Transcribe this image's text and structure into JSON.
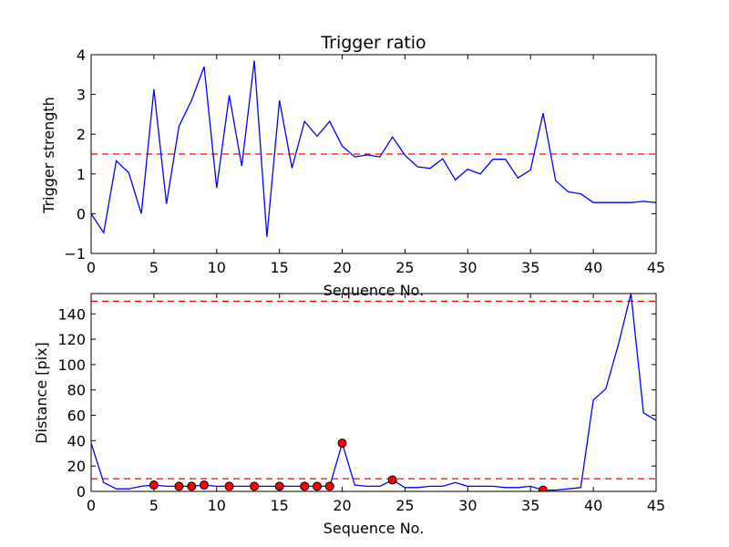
{
  "chart_data": [
    {
      "type": "line",
      "title": "Trigger ratio",
      "xlabel": "Sequence No.",
      "ylabel": "Trigger strength",
      "xlim": [
        0,
        45
      ],
      "ylim": [
        -1,
        4
      ],
      "xticks": [
        0,
        5,
        10,
        15,
        20,
        25,
        30,
        35,
        40,
        45
      ],
      "yticks": [
        -1,
        0,
        1,
        2,
        3,
        4
      ],
      "colors": {
        "series": "#0000ff",
        "threshold": "#ff0000"
      },
      "series": [
        {
          "x": [
            0,
            1,
            2,
            3,
            4,
            5,
            6,
            7,
            8,
            9,
            10,
            11,
            12,
            13,
            14,
            15,
            16,
            17,
            18,
            19,
            20,
            21,
            22,
            23,
            24,
            25,
            26,
            27,
            28,
            29,
            30,
            31,
            32,
            33,
            34,
            35,
            36,
            37,
            38,
            39,
            40,
            41,
            42,
            43,
            44,
            45
          ],
          "values": [
            0.0,
            -0.48,
            1.33,
            1.03,
            0.0,
            3.13,
            0.25,
            2.2,
            2.85,
            3.7,
            0.65,
            2.98,
            1.2,
            3.85,
            -0.58,
            2.85,
            1.15,
            2.32,
            1.95,
            2.32,
            1.7,
            1.43,
            1.48,
            1.43,
            1.93,
            1.47,
            1.18,
            1.14,
            1.38,
            0.85,
            1.12,
            1.0,
            1.37,
            1.37,
            0.9,
            1.1,
            2.53,
            0.83,
            0.55,
            0.5,
            0.28,
            0.28,
            0.28,
            0.28,
            0.31,
            0.28
          ]
        }
      ],
      "thresholds": [
        1.5
      ]
    },
    {
      "type": "line",
      "title": "",
      "xlabel": "Sequence No.",
      "ylabel": "Distance [pix]",
      "xlim": [
        0,
        45
      ],
      "ylim": [
        0,
        156
      ],
      "xticks": [
        0,
        5,
        10,
        15,
        20,
        25,
        30,
        35,
        40,
        45
      ],
      "yticks": [
        0,
        20,
        40,
        60,
        80,
        100,
        120,
        140
      ],
      "colors": {
        "series": "#0000ff",
        "threshold": "#ff0000",
        "marker": "#ff0000"
      },
      "series": [
        {
          "x": [
            0,
            1,
            2,
            3,
            4,
            5,
            6,
            7,
            8,
            9,
            10,
            11,
            12,
            13,
            14,
            15,
            16,
            17,
            18,
            19,
            20,
            21,
            22,
            23,
            24,
            25,
            26,
            27,
            28,
            29,
            30,
            31,
            32,
            33,
            34,
            35,
            36,
            37,
            38,
            39,
            40,
            41,
            42,
            43,
            44,
            45
          ],
          "values": [
            38,
            7,
            2,
            2,
            4,
            5,
            4,
            4,
            4,
            5,
            4,
            4,
            4,
            4,
            4,
            4,
            4,
            4,
            4,
            4,
            38,
            5,
            4,
            4,
            9,
            3,
            3,
            4,
            4,
            7,
            4,
            4,
            4,
            3,
            3,
            4,
            1,
            1,
            2,
            3,
            72,
            81,
            116,
            156,
            62,
            56
          ]
        }
      ],
      "markers": {
        "x": [
          5,
          7,
          8,
          9,
          11,
          13,
          15,
          17,
          18,
          19,
          20,
          24,
          36
        ],
        "y": [
          5,
          4,
          4,
          5,
          4,
          4,
          4,
          4,
          4,
          4,
          38,
          9,
          1
        ]
      },
      "thresholds": [
        10,
        150
      ]
    }
  ]
}
